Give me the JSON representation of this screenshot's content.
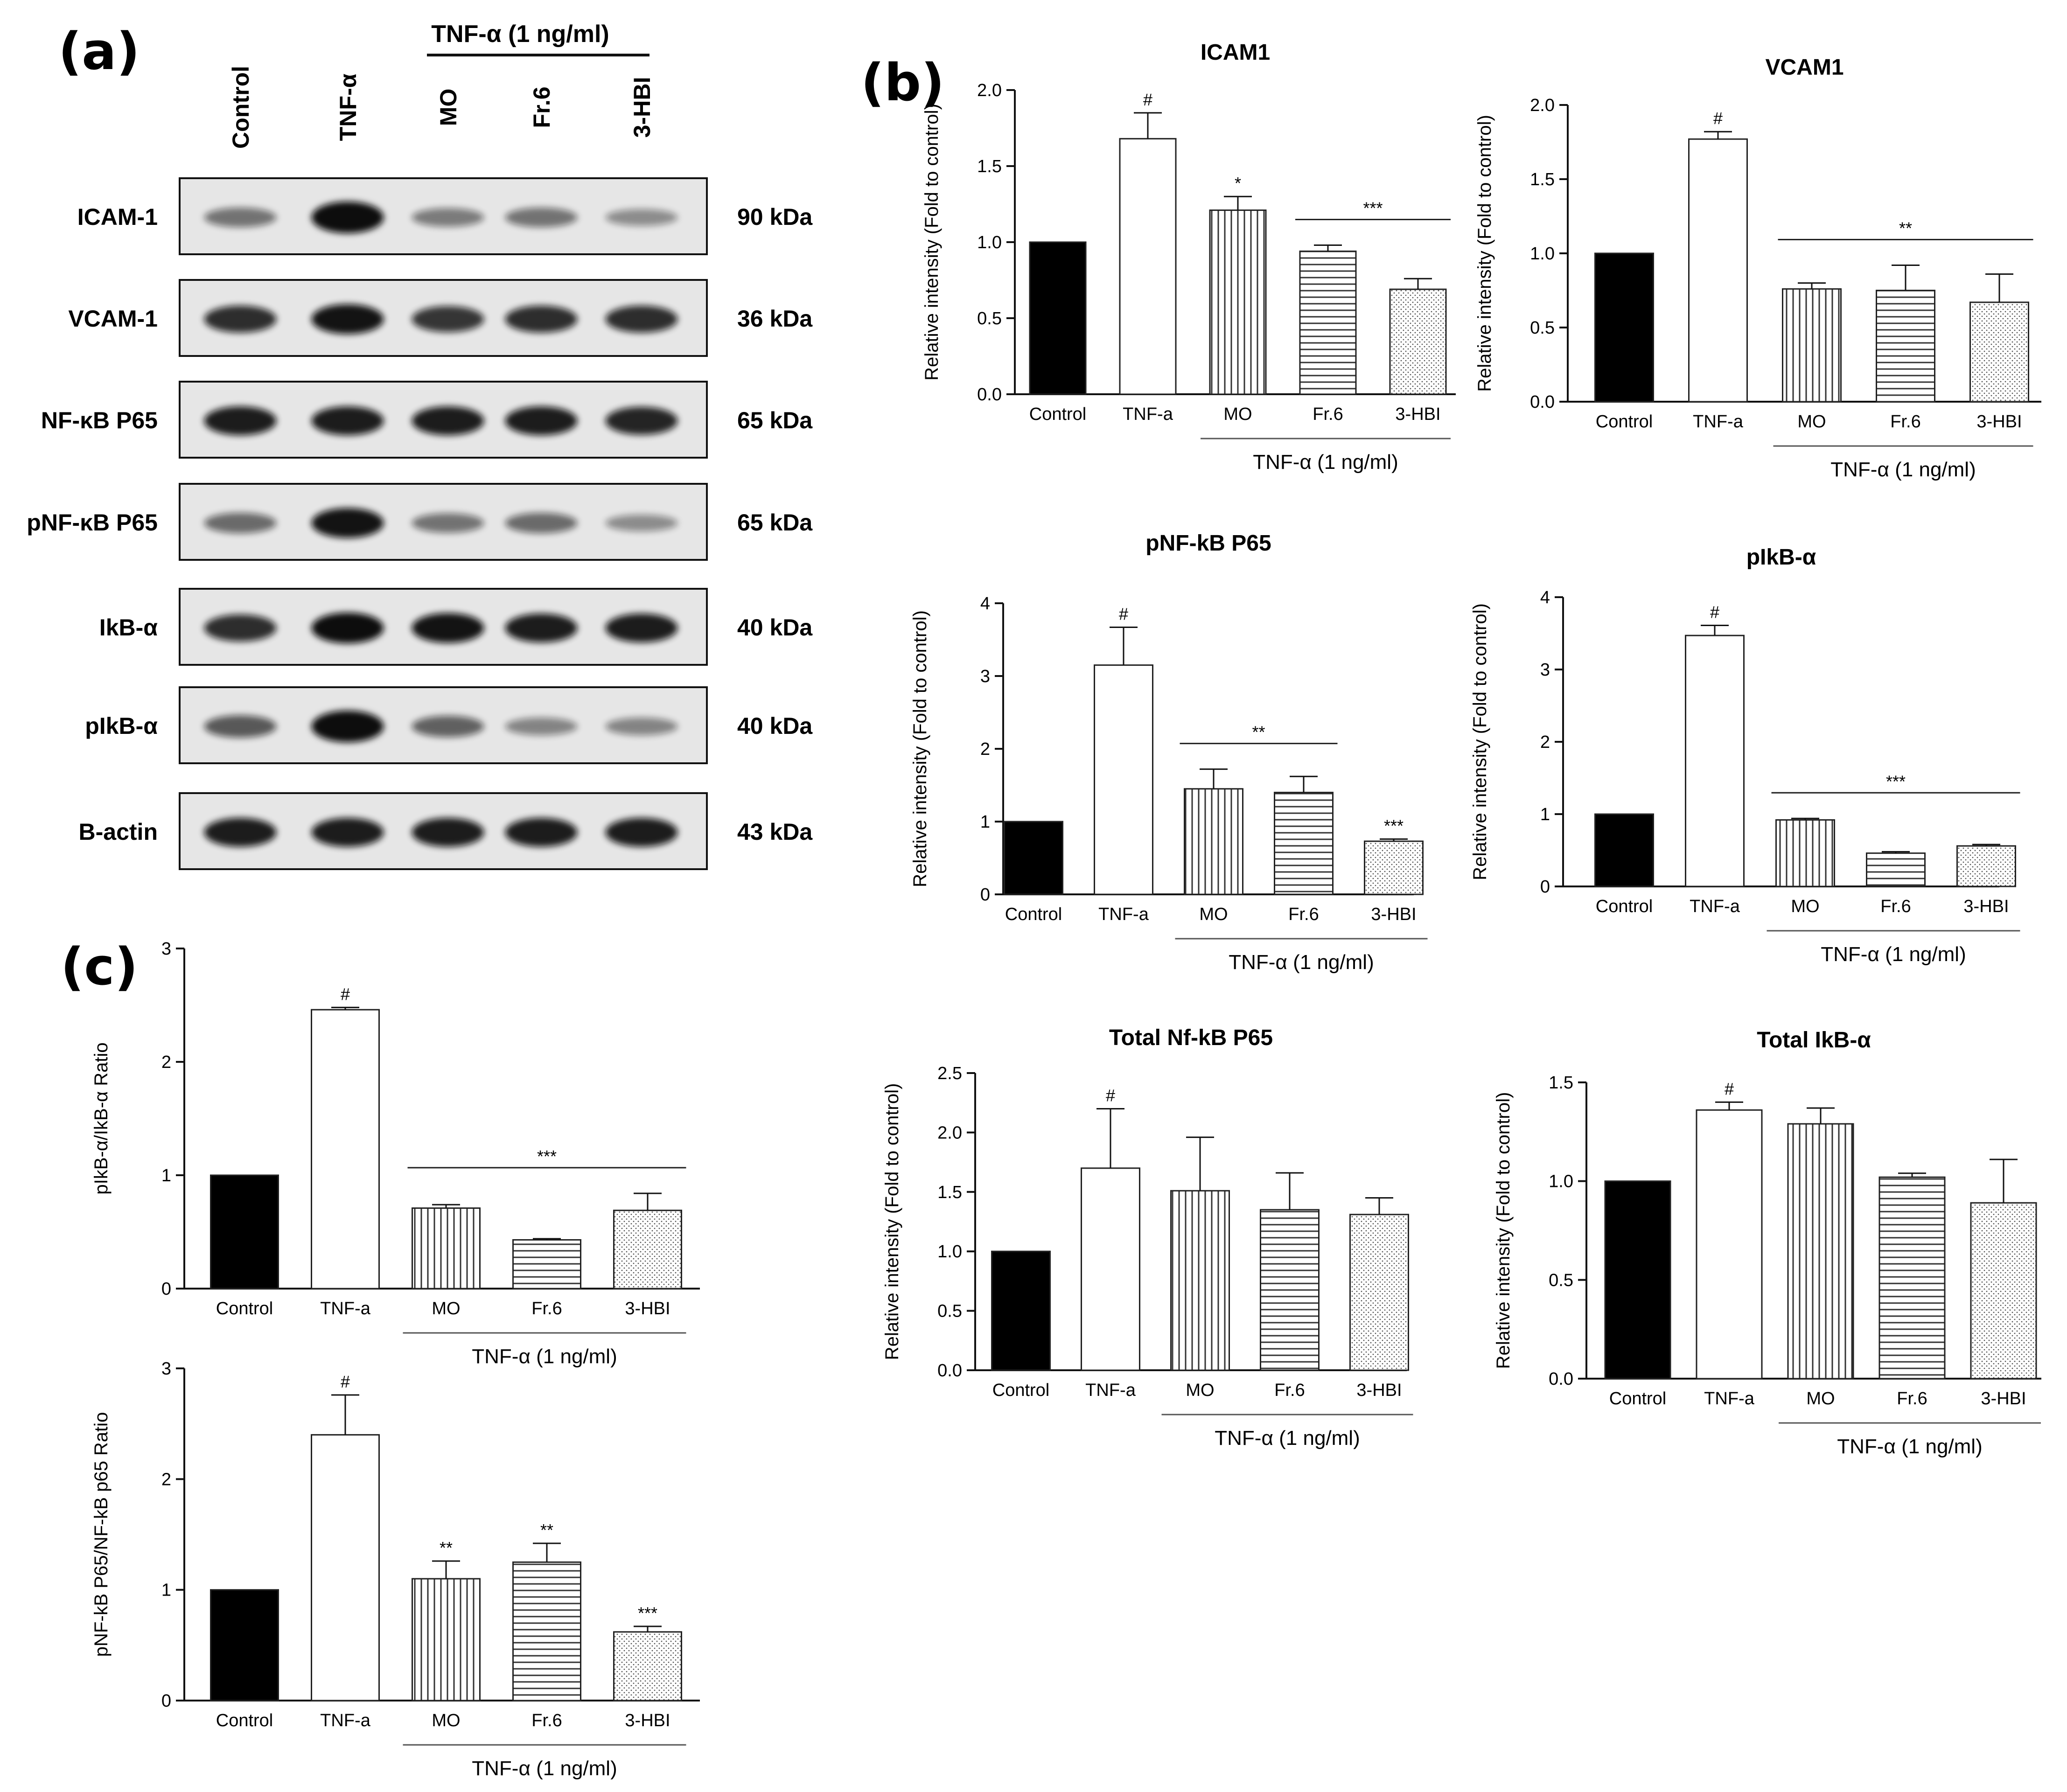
{
  "panel_labels": [
    "(a)",
    "(b)",
    "(c)"
  ],
  "blot": {
    "group_header": "TNF-α (1 ng/ml)",
    "lanes": [
      "Control",
      "TNF-α",
      "MO",
      "Fr.6",
      "3-HBI"
    ],
    "rows": [
      {
        "label": "ICAM-1",
        "kda": "90 kDa",
        "intensity": [
          0.35,
          1.0,
          0.3,
          0.35,
          0.2
        ]
      },
      {
        "label": "VCAM-1",
        "kda": "36 kDa",
        "intensity": [
          0.75,
          0.9,
          0.7,
          0.75,
          0.75
        ]
      },
      {
        "label": "NF-κB P65",
        "kda": "65 kDa",
        "intensity": [
          0.85,
          0.85,
          0.85,
          0.85,
          0.8
        ]
      },
      {
        "label": "pNF-κB P65",
        "kda": "65 kDa",
        "intensity": [
          0.4,
          0.9,
          0.35,
          0.4,
          0.2
        ]
      },
      {
        "label": "IkB-α",
        "kda": "40 kDa",
        "intensity": [
          0.75,
          0.95,
          0.9,
          0.85,
          0.85
        ]
      },
      {
        "label": "pIkB-α",
        "kda": "40 kDa",
        "intensity": [
          0.5,
          1.0,
          0.45,
          0.25,
          0.25
        ]
      },
      {
        "label": "B-actin",
        "kda": "43 kDa",
        "intensity": [
          0.85,
          0.85,
          0.85,
          0.85,
          0.85
        ]
      }
    ]
  },
  "chart_data": [
    {
      "id": "icam1",
      "type": "bar",
      "title": "ICAM1",
      "ylabel": "Relative intensity (Fold to control)",
      "categories": [
        "Control",
        "TNF-a",
        "MO",
        "Fr.6",
        "3-HBI"
      ],
      "values": [
        1.0,
        1.68,
        1.21,
        0.94,
        0.69
      ],
      "errors": [
        0,
        0.17,
        0.09,
        0.04,
        0.07
      ],
      "ylim": [
        0,
        2.0
      ],
      "yticks": [
        "0.0",
        "0.5",
        "1.0",
        "1.5",
        "2.0"
      ],
      "group_label": "TNF-α (1 ng/ml)",
      "annotations": [
        {
          "text": "#",
          "bar": 1
        },
        {
          "text": "*",
          "bar": 2
        },
        {
          "text": "***",
          "span": [
            3,
            4
          ]
        }
      ]
    },
    {
      "id": "vcam1",
      "type": "bar",
      "title": "VCAM1",
      "ylabel": "Relative intensity (Fold to control)",
      "categories": [
        "Control",
        "TNF-a",
        "MO",
        "Fr.6",
        "3-HBI"
      ],
      "values": [
        1.0,
        1.77,
        0.76,
        0.75,
        0.67
      ],
      "errors": [
        0,
        0.05,
        0.04,
        0.17,
        0.19
      ],
      "ylim": [
        0,
        2.0
      ],
      "yticks": [
        "0.0",
        "0.5",
        "1.0",
        "1.5",
        "2.0"
      ],
      "group_label": "TNF-α (1 ng/ml)",
      "annotations": [
        {
          "text": "#",
          "bar": 1
        },
        {
          "text": "**",
          "span": [
            2,
            4
          ]
        }
      ]
    },
    {
      "id": "pnfkb",
      "type": "bar",
      "title": "pNF-kB P65",
      "ylabel": "Relative intensity (Fold to control)",
      "categories": [
        "Control",
        "TNF-a",
        "MO",
        "Fr.6",
        "3-HBI"
      ],
      "values": [
        1.0,
        3.15,
        1.45,
        1.4,
        0.73
      ],
      "errors": [
        0,
        0.52,
        0.27,
        0.22,
        0.03
      ],
      "ylim": [
        0,
        4
      ],
      "yticks": [
        "0",
        "1",
        "2",
        "3",
        "4"
      ],
      "group_label": "TNF-α (1 ng/ml)",
      "annotations": [
        {
          "text": "#",
          "bar": 1
        },
        {
          "text": "**",
          "span": [
            2,
            3
          ]
        },
        {
          "text": "***",
          "bar": 4
        }
      ]
    },
    {
      "id": "pikba",
      "type": "bar",
      "title": "pIkB-α",
      "ylabel": "Relative intensity (Fold to control)",
      "categories": [
        "Control",
        "TNF-a",
        "MO",
        "Fr.6",
        "3-HBI"
      ],
      "values": [
        1.0,
        3.47,
        0.92,
        0.46,
        0.56
      ],
      "errors": [
        0,
        0.14,
        0.02,
        0.02,
        0.02
      ],
      "ylim": [
        0,
        4
      ],
      "yticks": [
        "0",
        "1",
        "2",
        "3",
        "4"
      ],
      "group_label": "TNF-α (1 ng/ml)",
      "annotations": [
        {
          "text": "#",
          "bar": 1
        },
        {
          "text": "***",
          "span": [
            2,
            4
          ]
        }
      ]
    },
    {
      "id": "totnfkb",
      "type": "bar",
      "title": "Total Nf-kB P65",
      "ylabel": "Relative intensity (Fold to control)",
      "categories": [
        "Control",
        "TNF-a",
        "MO",
        "Fr.6",
        "3-HBI"
      ],
      "values": [
        1.0,
        1.7,
        1.51,
        1.35,
        1.31
      ],
      "errors": [
        0,
        0.5,
        0.45,
        0.31,
        0.14
      ],
      "ylim": [
        0,
        2.5
      ],
      "yticks": [
        "0.0",
        "0.5",
        "1.0",
        "1.5",
        "2.0",
        "2.5"
      ],
      "group_label": "TNF-α (1 ng/ml)",
      "annotations": [
        {
          "text": "#",
          "bar": 1
        }
      ]
    },
    {
      "id": "totikba",
      "type": "bar",
      "title": "Total IkB-α",
      "ylabel": "Relative intensity (Fold to control)",
      "categories": [
        "Control",
        "TNF-a",
        "MO",
        "Fr.6",
        "3-HBI"
      ],
      "values": [
        1.0,
        1.36,
        1.29,
        1.02,
        0.89
      ],
      "errors": [
        0,
        0.04,
        0.08,
        0.02,
        0.22
      ],
      "ylim": [
        0,
        1.5
      ],
      "yticks": [
        "0.0",
        "0.5",
        "1.0",
        "1.5"
      ],
      "group_label": "TNF-α (1 ng/ml)",
      "annotations": [
        {
          "text": "#",
          "bar": 1
        }
      ]
    },
    {
      "id": "ratio-ikb",
      "type": "bar",
      "title": "",
      "ylabel": "pIkB-α/IkB-α Ratio",
      "categories": [
        "Control",
        "TNF-a",
        "MO",
        "Fr.6",
        "3-HBI"
      ],
      "values": [
        1.0,
        2.46,
        0.71,
        0.43,
        0.69
      ],
      "errors": [
        0,
        0.02,
        0.03,
        0.01,
        0.15
      ],
      "ylim": [
        0,
        3
      ],
      "yticks": [
        "0",
        "1",
        "2",
        "3"
      ],
      "group_label": "TNF-α (1 ng/ml)",
      "annotations": [
        {
          "text": "#",
          "bar": 1
        },
        {
          "text": "***",
          "span": [
            2,
            4
          ]
        }
      ]
    },
    {
      "id": "ratio-nfkb",
      "type": "bar",
      "title": "",
      "ylabel": "pNF-kB P65/NF-kB p65 Ratio",
      "categories": [
        "Control",
        "TNF-a",
        "MO",
        "Fr.6",
        "3-HBI"
      ],
      "values": [
        1.0,
        2.4,
        1.1,
        1.25,
        0.62
      ],
      "errors": [
        0,
        0.36,
        0.16,
        0.17,
        0.05
      ],
      "ylim": [
        0,
        3
      ],
      "yticks": [
        "0",
        "1",
        "2",
        "3"
      ],
      "group_label": "TNF-α (1 ng/ml)",
      "annotations": [
        {
          "text": "#",
          "bar": 1
        },
        {
          "text": "**",
          "bar": 2
        },
        {
          "text": "**",
          "bar": 3
        },
        {
          "text": "***",
          "bar": 4
        }
      ]
    }
  ],
  "colors": {
    "axis": "#111111",
    "control_fill": "#000000",
    "bar_stroke": "#222222",
    "blot_bg": "#e6e6e6",
    "band": "#111111"
  },
  "bar_patterns": [
    "solid-black",
    "white",
    "vertical-lines",
    "horizontal-lines",
    "dots"
  ]
}
